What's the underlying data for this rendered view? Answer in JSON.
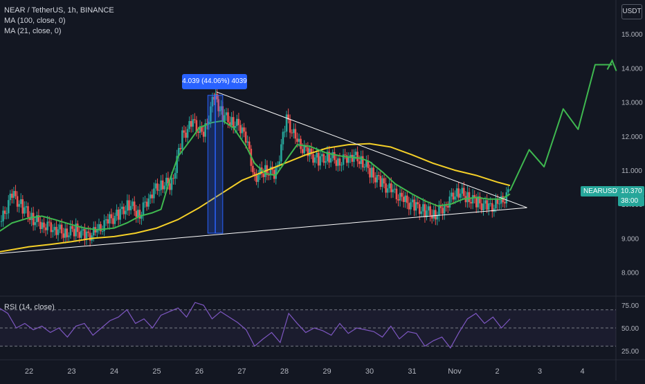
{
  "legend": {
    "symbol": "NEAR / TetherUS, 1h, BINANCE",
    "ma100": "MA (100, close, 0)",
    "ma21": "MA (21, close, 0)",
    "rsi": "RSI (14, close)"
  },
  "currency": "USDT",
  "price_badge": {
    "symbol": "NEARUSDT",
    "price": "10.370",
    "countdown": "38:00"
  },
  "measure_label": "4.039 (44.06%) 4039",
  "chart_data": [
    {
      "type": "line",
      "title": "",
      "x_axis": {
        "ticks": [
          "22",
          "23",
          "24",
          "25",
          "26",
          "27",
          "28",
          "29",
          "30",
          "31",
          "Nov",
          "2",
          "3",
          "4"
        ],
        "tick_positions_day": [
          0,
          1,
          2,
          3,
          4,
          5,
          6,
          7,
          8,
          9,
          10,
          11,
          12,
          13
        ]
      },
      "y_axis": {
        "ticks": [
          "8.000",
          "9.000",
          "10.000",
          "11.000",
          "12.000",
          "13.000",
          "14.000",
          "15.000"
        ],
        "ylim": [
          7.3,
          16.0
        ],
        "side": "right"
      },
      "series": [
        {
          "name": "",
          "kind": "candles",
          "color_up": "#26a69a",
          "color_down": "#ef5350",
          "x_day": [
            -0.65,
            -0.4,
            -0.15,
            0.1,
            0.35,
            0.6,
            0.85,
            1.1,
            1.35,
            1.6,
            1.85,
            2.1,
            2.35,
            2.6,
            2.85,
            3.1,
            3.35,
            3.6,
            3.85,
            4.1,
            4.35,
            4.55,
            4.8,
            5.05,
            5.3,
            5.55,
            5.8,
            6.05,
            6.3,
            6.55,
            6.8,
            7.05,
            7.3,
            7.55,
            7.8,
            8.05,
            8.3,
            8.55,
            8.8,
            9.05,
            9.3,
            9.55,
            9.8,
            10.05,
            10.3,
            10.55,
            10.8,
            11.05,
            11.3
          ],
          "close": [
            9.5,
            10.3,
            9.9,
            9.55,
            9.4,
            9.3,
            9.15,
            9.25,
            9.05,
            9.2,
            9.5,
            9.7,
            10.0,
            9.7,
            10.3,
            10.6,
            10.6,
            12.0,
            12.4,
            12.0,
            13.2,
            12.6,
            12.4,
            12.2,
            10.8,
            11.0,
            10.9,
            12.5,
            11.8,
            11.5,
            11.3,
            11.4,
            11.25,
            11.45,
            11.3,
            10.9,
            10.6,
            10.35,
            10.1,
            9.95,
            9.8,
            9.7,
            10.0,
            10.4,
            10.2,
            10.05,
            9.9,
            10.0,
            10.37
          ]
        },
        {
          "name": "",
          "kind": "ma",
          "period": 100,
          "color": "#f5d028",
          "x_day": [
            -0.7,
            0,
            0.5,
            1,
            1.5,
            2,
            2.5,
            3,
            3.5,
            4,
            4.5,
            5,
            5.5,
            6,
            6.5,
            7,
            7.5,
            8,
            8.5,
            9,
            9.5,
            10,
            10.5,
            11,
            11.3
          ],
          "values": [
            8.6,
            8.75,
            8.82,
            8.9,
            9.0,
            9.05,
            9.15,
            9.3,
            9.55,
            9.9,
            10.3,
            10.7,
            10.95,
            11.2,
            11.45,
            11.65,
            11.75,
            11.78,
            11.68,
            11.45,
            11.2,
            11.0,
            10.85,
            10.65,
            10.55
          ]
        },
        {
          "name": "",
          "kind": "ma",
          "period": 21,
          "color": "#3fb950",
          "x_day": [
            -0.7,
            -0.4,
            0,
            0.3,
            0.6,
            1,
            1.3,
            1.6,
            2,
            2.3,
            2.6,
            2.9,
            3.1,
            3.3,
            3.5,
            3.8,
            4.0,
            4.3,
            4.55,
            4.8,
            5.1,
            5.3,
            5.55,
            5.8,
            6.1,
            6.3,
            6.6,
            7.0,
            7.4,
            7.8,
            8.0,
            8.3,
            8.6,
            9.0,
            9.3,
            9.6,
            9.9,
            10.2,
            10.5,
            10.8,
            11.1,
            11.3
          ],
          "values": [
            9.2,
            9.45,
            9.6,
            9.65,
            9.55,
            9.4,
            9.3,
            9.25,
            9.3,
            9.45,
            9.65,
            9.75,
            9.85,
            10.7,
            11.4,
            11.9,
            12.25,
            12.4,
            12.45,
            12.25,
            11.7,
            11.2,
            10.9,
            10.85,
            11.4,
            11.75,
            11.7,
            11.5,
            11.4,
            11.35,
            11.25,
            10.95,
            10.6,
            10.3,
            10.1,
            9.95,
            10.0,
            10.15,
            10.2,
            10.15,
            10.15,
            10.3
          ]
        },
        {
          "name": "",
          "kind": "drawing",
          "label": "",
          "color": "#ffffff",
          "x_day": [
            4.4,
            11.7
          ],
          "values": [
            13.3,
            9.9
          ]
        },
        {
          "name": "",
          "kind": "drawing",
          "label": "",
          "color": "#ffffff",
          "x_day": [
            -0.7,
            11.7
          ],
          "values": [
            8.55,
            9.9
          ]
        },
        {
          "name": "",
          "kind": "projection",
          "color": "#3fb950",
          "x_day": [
            11.3,
            11.75,
            12.1,
            12.55,
            12.9,
            13.3,
            13.7
          ],
          "values": [
            10.4,
            11.6,
            11.1,
            12.8,
            12.2,
            14.1,
            14.1
          ]
        }
      ],
      "measure": {
        "x_day": [
          4.2,
          4.55
        ],
        "values": [
          9.15,
          13.2
        ]
      },
      "grid": false
    },
    {
      "type": "line",
      "title": "",
      "y_axis": {
        "ticks": [
          "25.00",
          "50.00",
          "75.00"
        ],
        "ylim": [
          15,
          85
        ],
        "side": "right"
      },
      "levels": [
        70,
        50,
        30
      ],
      "series": [
        {
          "name": "",
          "color": "#7e57c2",
          "x_day": [
            -0.7,
            -0.5,
            -0.3,
            -0.1,
            0.1,
            0.3,
            0.5,
            0.7,
            0.9,
            1.1,
            1.3,
            1.5,
            1.7,
            1.9,
            2.1,
            2.3,
            2.5,
            2.7,
            2.9,
            3.1,
            3.3,
            3.5,
            3.7,
            3.9,
            4.1,
            4.3,
            4.5,
            4.7,
            4.9,
            5.1,
            5.3,
            5.5,
            5.7,
            5.9,
            6.1,
            6.3,
            6.5,
            6.7,
            6.9,
            7.1,
            7.3,
            7.5,
            7.7,
            7.9,
            8.1,
            8.3,
            8.5,
            8.7,
            8.9,
            9.1,
            9.3,
            9.5,
            9.7,
            9.9,
            10.1,
            10.3,
            10.5,
            10.7,
            10.9,
            11.1,
            11.3
          ],
          "values": [
            72,
            66,
            50,
            55,
            48,
            52,
            45,
            50,
            40,
            52,
            55,
            42,
            50,
            58,
            62,
            70,
            55,
            60,
            50,
            64,
            68,
            72,
            62,
            78,
            75,
            60,
            68,
            62,
            56,
            48,
            30,
            38,
            45,
            34,
            66,
            55,
            45,
            50,
            47,
            42,
            55,
            44,
            50,
            48,
            46,
            40,
            52,
            38,
            46,
            44,
            30,
            36,
            40,
            28,
            45,
            60,
            66,
            55,
            62,
            50,
            60
          ]
        }
      ]
    }
  ]
}
